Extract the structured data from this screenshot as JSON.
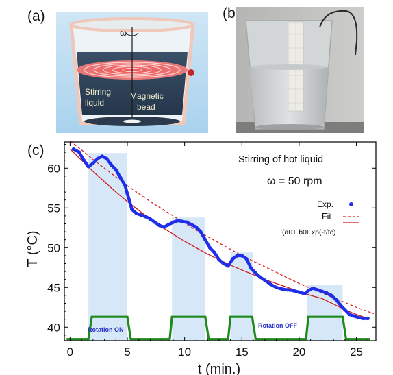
{
  "panels": {
    "a": {
      "label": "(a)",
      "omega_symbol": "ω",
      "label_liquid_1": "Stirring",
      "label_liquid_2": "liquid",
      "label_bead_1": "Magnetic",
      "label_bead_2": "bead"
    },
    "b": {
      "label": "(b)"
    },
    "c": {
      "label": "(c)"
    }
  },
  "chart_data": {
    "type": "line",
    "xlabel": "t (min.)",
    "ylabel": "T (°C)",
    "xlim": [
      -0.5,
      26.7
    ],
    "ylim": [
      38.3,
      63.3
    ],
    "xticks": [
      0,
      5,
      10,
      15,
      20,
      25
    ],
    "yticks": [
      40,
      45,
      50,
      55,
      60
    ],
    "grid": false,
    "annotations": {
      "title_1": "Stirring of hot liquid",
      "title_2": "ω = 50 rpm",
      "fit_formula": "(a0+ b0Exp(-t/tc)",
      "rotation_on": "Rotation ON",
      "rotation_off": "Rotation OFF"
    },
    "legend": {
      "placement": "right",
      "entries": [
        {
          "label": "Exp.",
          "style": "dots",
          "color": "#1f2ee8"
        },
        {
          "label": "Fit",
          "style": "dashed",
          "color": "#e02020"
        },
        {
          "label": "Fit",
          "style": "solid",
          "color": "#d01818"
        }
      ]
    },
    "rotation_on_intervals": [
      [
        1.6,
        5.0
      ],
      [
        8.9,
        11.8
      ],
      [
        14.0,
        16.0
      ],
      [
        20.7,
        23.8
      ]
    ],
    "rotation_signal": {
      "low": 38.5,
      "high": 41.3,
      "x": [
        -0.3,
        1.6,
        1.9,
        5.0,
        5.3,
        8.7,
        8.9,
        11.8,
        12.1,
        13.8,
        14.0,
        15.9,
        16.2,
        20.6,
        20.8,
        23.8,
        24.1,
        26.2
      ],
      "y": [
        38.5,
        38.5,
        41.3,
        41.3,
        38.5,
        38.5,
        41.3,
        41.3,
        38.5,
        38.5,
        41.3,
        41.3,
        38.5,
        38.5,
        41.3,
        41.3,
        38.5,
        38.5
      ]
    },
    "series": [
      {
        "name": "Exp.",
        "color": "#1f2ee8",
        "x": [
          0.3,
          0.8,
          1.2,
          1.6,
          2.0,
          2.4,
          2.8,
          3.2,
          3.6,
          4.0,
          4.4,
          4.8,
          5.0,
          5.4,
          5.8,
          6.2,
          6.6,
          7.0,
          7.4,
          7.8,
          8.2,
          8.6,
          9.0,
          9.4,
          9.8,
          10.2,
          10.6,
          11.0,
          11.4,
          11.8,
          12.2,
          12.6,
          13.0,
          13.4,
          13.8,
          14.2,
          14.6,
          15.0,
          15.4,
          15.8,
          16.2,
          16.6,
          17.0,
          17.5,
          18.0,
          18.5,
          19.0,
          19.5,
          20.0,
          20.5,
          20.8,
          21.2,
          21.6,
          22.0,
          22.4,
          22.8,
          23.2,
          23.6,
          24.0,
          24.4,
          24.8,
          25.2,
          25.6,
          26.0
        ],
        "y": [
          62.4,
          62.0,
          61.0,
          60.2,
          60.6,
          61.2,
          61.5,
          61.2,
          60.4,
          59.8,
          58.8,
          57.8,
          56.8,
          54.8,
          54.3,
          54.1,
          53.9,
          53.6,
          53.2,
          52.8,
          52.6,
          52.9,
          53.2,
          53.4,
          53.3,
          53.2,
          52.9,
          52.6,
          52.0,
          51.0,
          50.0,
          49.4,
          48.5,
          48.0,
          47.7,
          48.6,
          49.0,
          49.0,
          48.6,
          47.4,
          46.8,
          46.3,
          45.9,
          45.4,
          45.0,
          44.8,
          44.7,
          44.6,
          44.4,
          44.2,
          44.6,
          44.9,
          44.7,
          44.5,
          44.3,
          44.0,
          43.5,
          42.8,
          42.2,
          41.6,
          41.4,
          41.2,
          41.1,
          41.1
        ]
      },
      {
        "name": "Fit",
        "style": "dashed",
        "color": "#e02020",
        "x": [
          0,
          1,
          2,
          3,
          4,
          5,
          6,
          7,
          8,
          9,
          10,
          11,
          12,
          13,
          14,
          15,
          16,
          17,
          18,
          19,
          20,
          21,
          22,
          23,
          24,
          25,
          26.5
        ],
        "y": [
          63.4,
          62.3,
          61.1,
          60.0,
          58.9,
          57.8,
          56.8,
          55.8,
          54.9,
          54.0,
          53.1,
          52.2,
          51.4,
          50.6,
          49.8,
          49.0,
          48.3,
          47.6,
          46.9,
          46.2,
          45.5,
          44.9,
          44.3,
          43.7,
          43.1,
          42.5,
          41.7
        ]
      },
      {
        "name": "Fit",
        "style": "solid",
        "color": "#d01818",
        "x": [
          0,
          1,
          2,
          3,
          4,
          5,
          6,
          7,
          8,
          9,
          10,
          11,
          12,
          13,
          14,
          15,
          16,
          17,
          18,
          19,
          20,
          21,
          22,
          23,
          24,
          25,
          26
        ],
        "y": [
          62.4,
          61.0,
          59.6,
          58.3,
          57.0,
          55.8,
          54.7,
          53.6,
          52.6,
          51.7,
          50.8,
          50.0,
          49.2,
          48.5,
          47.8,
          47.2,
          46.6,
          46.0,
          45.5,
          45.0,
          44.5,
          44.0,
          43.6,
          42.9,
          42.2,
          41.6,
          41.1
        ]
      }
    ]
  }
}
